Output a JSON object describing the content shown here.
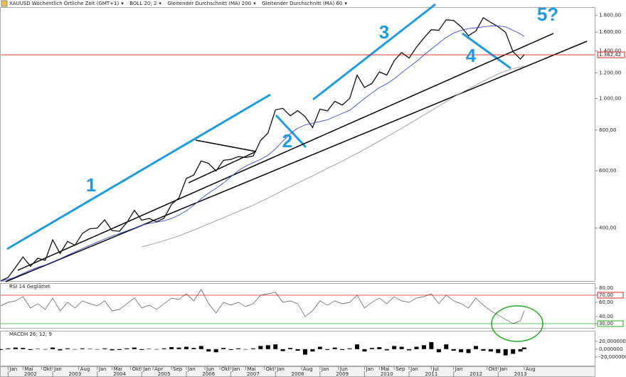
{
  "chart_data": [
    {
      "type": "line",
      "log_scale": true,
      "header": [
        "XAUUSD Wöchentlich Örtliche Zeit (GMT+1)",
        "BOLL 20; 2"
      ],
      "annotations": [
        "1",
        "2",
        "3",
        "4",
        "5?"
      ],
      "last_price": {
        "value": 1362.42,
        "label": "1.362,42"
      },
      "x": [
        "2001-11",
        "2002-01",
        "2002-03",
        "2002-05",
        "2002-07",
        "2002-09",
        "2002-11",
        "2003-01",
        "2003-03",
        "2003-05",
        "2003-07",
        "2003-09",
        "2003-11",
        "2004-01",
        "2004-03",
        "2004-05",
        "2004-07",
        "2004-09",
        "2004-11",
        "2005-01",
        "2005-03",
        "2005-05",
        "2005-07",
        "2005-09",
        "2005-11",
        "2006-01",
        "2006-03",
        "2006-05",
        "2006-07",
        "2006-09",
        "2006-11",
        "2007-01",
        "2007-03",
        "2007-05",
        "2007-07",
        "2007-09",
        "2007-11",
        "2008-01",
        "2008-03",
        "2008-05",
        "2008-07",
        "2008-09",
        "2008-11",
        "2009-01",
        "2009-03",
        "2009-05",
        "2009-07",
        "2009-09",
        "2009-11",
        "2010-01",
        "2010-03",
        "2010-05",
        "2010-07",
        "2010-09",
        "2010-11",
        "2011-01",
        "2011-03",
        "2011-05",
        "2011-07",
        "2011-09",
        "2011-11",
        "2012-01",
        "2012-03",
        "2012-05",
        "2012-07",
        "2012-09",
        "2012-11",
        "2013-01",
        "2013-03",
        "2013-05",
        "2013-07",
        "2013-08"
      ],
      "xlim": [
        "2001-11",
        "2015-03"
      ],
      "ylim": [
        275,
        1900
      ],
      "yticks": [
        {
          "value": 400,
          "label": "400,00"
        },
        {
          "value": 600,
          "label": "600,00"
        },
        {
          "value": 800,
          "label": "800,00"
        },
        {
          "value": 1000,
          "label": "1.000,00"
        },
        {
          "value": 1200,
          "label": "1.200,00"
        },
        {
          "value": 1400,
          "label": "1.400,00"
        },
        {
          "value": 1600,
          "label": "1.600,00"
        },
        {
          "value": 1800,
          "label": "1.800,00"
        }
      ],
      "series": [
        {
          "name": "XAUUSD",
          "color": "#111111",
          "values": [
            275,
            282,
            303,
            326,
            305,
            323,
            318,
            368,
            334,
            364,
            354,
            385,
            398,
            400,
            424,
            393,
            391,
            416,
            453,
            423,
            428,
            418,
            429,
            473,
            495,
            568,
            582,
            643,
            632,
            599,
            646,
            650,
            663,
            659,
            666,
            743,
            783,
            923,
            933,
            885,
            918,
            880,
            815,
            928,
            916,
            980,
            955,
            1001,
            1180,
            1081,
            1113,
            1207,
            1181,
            1307,
            1386,
            1332,
            1439,
            1536,
            1628,
            1620,
            1746,
            1737,
            1662,
            1560,
            1614,
            1772,
            1714,
            1663,
            1596,
            1392,
            1322,
            1362
          ]
        },
        {
          "name": "Gleitender Durchschnitt (MA) 200",
          "color": "#9a9a9a",
          "values": [
            null,
            null,
            null,
            null,
            null,
            null,
            null,
            null,
            null,
            null,
            null,
            null,
            null,
            null,
            null,
            null,
            null,
            null,
            null,
            350,
            355,
            360,
            366,
            372,
            378,
            386,
            394,
            403,
            412,
            421,
            430,
            440,
            450,
            460,
            470,
            482,
            494,
            508,
            522,
            536,
            550,
            564,
            578,
            594,
            610,
            626,
            642,
            660,
            678,
            698,
            718,
            740,
            762,
            786,
            810,
            836,
            862,
            890,
            918,
            948,
            978,
            1010,
            1040,
            1070,
            1100,
            1130,
            1160,
            1190,
            1215,
            1235,
            1250,
            1260
          ]
        },
        {
          "name": "Gleitender Durchschnitt (MA) 60",
          "color": "#3b4fd8",
          "values": [
            275,
            278,
            283,
            290,
            297,
            303,
            308,
            315,
            322,
            330,
            338,
            346,
            354,
            362,
            370,
            378,
            385,
            392,
            400,
            408,
            413,
            417,
            421,
            428,
            438,
            452,
            470,
            492,
            512,
            530,
            550,
            575,
            600,
            620,
            635,
            650,
            670,
            700,
            740,
            780,
            810,
            830,
            840,
            850,
            860,
            880,
            900,
            920,
            960,
            1000,
            1040,
            1080,
            1110,
            1150,
            1200,
            1250,
            1300,
            1360,
            1420,
            1480,
            1540,
            1590,
            1620,
            1640,
            1650,
            1660,
            1670,
            1670,
            1660,
            1620,
            1580,
            1550
          ]
        }
      ]
    },
    {
      "type": "line",
      "title": "RSI 14 Geglättet",
      "color": "#555555",
      "values": [
        55,
        60,
        62,
        68,
        52,
        58,
        50,
        66,
        48,
        60,
        52,
        62,
        58,
        55,
        62,
        48,
        50,
        58,
        66,
        52,
        56,
        50,
        58,
        66,
        64,
        72,
        62,
        78,
        58,
        45,
        60,
        56,
        60,
        54,
        58,
        70,
        72,
        74,
        60,
        62,
        58,
        40,
        48,
        62,
        56,
        62,
        58,
        60,
        70,
        52,
        60,
        66,
        58,
        68,
        62,
        60,
        66,
        68,
        72,
        58,
        70,
        62,
        58,
        52,
        66,
        56,
        48,
        42,
        36,
        30,
        34,
        48
      ],
      "ylim": [
        24,
        86
      ],
      "yticks": [
        {
          "value": 30,
          "label": "30,00"
        },
        {
          "value": 40,
          "label": "40,00"
        },
        {
          "value": 60,
          "label": "60,00"
        },
        {
          "value": 70,
          "label": "70,00"
        },
        {
          "value": 80,
          "label": "80,00"
        }
      ]
    },
    {
      "type": "bar",
      "title": "MACDH 26; 12; 9",
      "color": "#000000",
      "values": [
        -2,
        2,
        4,
        3,
        -2,
        1,
        -1,
        4,
        -3,
        2,
        -1,
        2,
        1,
        -1,
        2,
        -3,
        -2,
        2,
        4,
        -2,
        1,
        -1,
        2,
        5,
        4,
        6,
        3,
        8,
        -6,
        -8,
        3,
        -2,
        2,
        -1,
        2,
        8,
        10,
        12,
        -5,
        3,
        -4,
        -14,
        -6,
        6,
        -2,
        4,
        -2,
        2,
        12,
        -6,
        3,
        5,
        -3,
        8,
        6,
        -3,
        6,
        10,
        18,
        -8,
        12,
        -4,
        -8,
        -10,
        8,
        -4,
        -6,
        -10,
        -16,
        -12,
        -6,
        4
      ],
      "ylim": [
        -42,
        45
      ],
      "yticks": [
        {
          "value": -20,
          "label": "-20,000000"
        },
        {
          "value": 0,
          "label": "0,000000"
        },
        {
          "value": 20,
          "label": "20,000000"
        }
      ],
      "xticks": [
        {
          "value": "2002-01",
          "label": "Jan"
        },
        {
          "value": "2002-05",
          "label": "Mai"
        },
        {
          "value": "2002-10",
          "label": "Okt"
        },
        {
          "value": "2003-01",
          "label": "Jan"
        },
        {
          "value": "2003-08",
          "label": "Aug"
        },
        {
          "value": "2004-01",
          "label": "Jan"
        },
        {
          "value": "2004-05",
          "label": "Mai"
        },
        {
          "value": "2004-10",
          "label": "Okt"
        },
        {
          "value": "2005-01",
          "label": "Jan"
        },
        {
          "value": "2005-04",
          "label": "Apr"
        },
        {
          "value": "2005-09",
          "label": "Sep"
        },
        {
          "value": "2006-01",
          "label": "Jan"
        },
        {
          "value": "2006-06",
          "label": "Jun"
        },
        {
          "value": "2006-10",
          "label": "Okt"
        },
        {
          "value": "2007-01",
          "label": "Jan"
        },
        {
          "value": "2007-05",
          "label": "Mai"
        },
        {
          "value": "2007-10",
          "label": "Okt"
        },
        {
          "value": "2008-01",
          "label": "Jan"
        },
        {
          "value": "2008-08",
          "label": "Aug"
        },
        {
          "value": "2009-01",
          "label": "Jan"
        },
        {
          "value": "2009-06",
          "label": "Jun"
        },
        {
          "value": "2010-01",
          "label": "Jan"
        },
        {
          "value": "2010-05",
          "label": "Mai"
        },
        {
          "value": "2010-09",
          "label": "Sep"
        },
        {
          "value": "2011-01",
          "label": "Jan"
        },
        {
          "value": "2011-07",
          "label": "Jul"
        },
        {
          "value": "2012-01",
          "label": "Jan"
        },
        {
          "value": "2012-10",
          "label": "Okt"
        },
        {
          "value": "2013-01",
          "label": "Jan"
        },
        {
          "value": "2013-08",
          "label": "Aug"
        }
      ],
      "years": [
        "2002",
        "2003",
        "2004",
        "2005",
        "2006",
        "2007",
        "2008",
        "2009",
        "2010",
        "2011",
        "2012",
        "2013"
      ]
    }
  ]
}
